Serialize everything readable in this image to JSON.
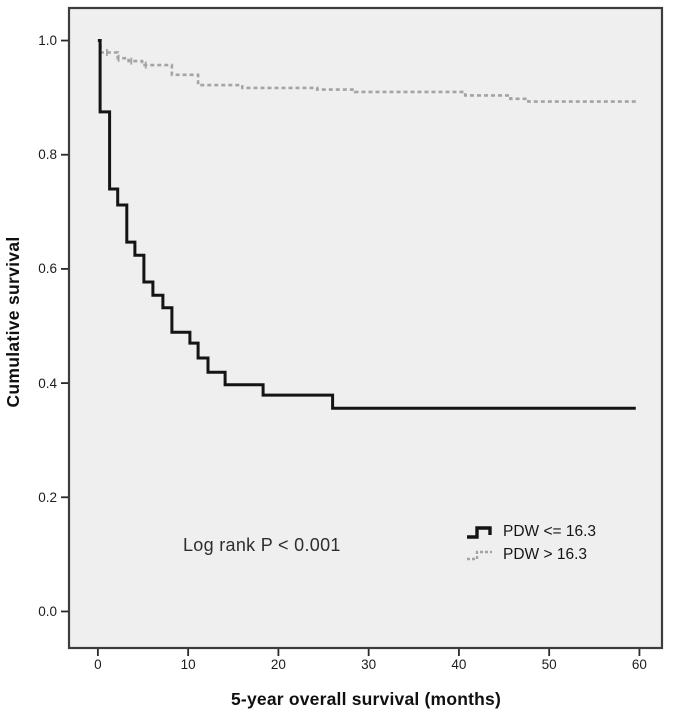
{
  "figure": {
    "background": "#ffffff",
    "plot_background": "#efefef",
    "frame_color": "#3d3d3d",
    "tick_color": "#2a2a2a"
  },
  "chart_data": {
    "type": "line",
    "subtype": "kaplan-meier-step",
    "title": "",
    "xlabel": "5-year overall survival (months)",
    "ylabel": "Cumulative survival",
    "xlim": [
      -3.2,
      62.5
    ],
    "ylim": [
      -0.064,
      1.057
    ],
    "x_tick_values": [
      0,
      10,
      20,
      30,
      40,
      50,
      60
    ],
    "x_tick_labels": [
      "0",
      "10",
      "20",
      "30",
      "40",
      "50",
      "60"
    ],
    "y_tick_values": [
      0.0,
      0.2,
      0.4,
      0.6,
      0.8,
      1.0
    ],
    "y_tick_labels": [
      "0.0",
      "0.2",
      "0.4",
      "0.6",
      "0.8",
      "1.0"
    ],
    "grid": false,
    "legend_position": "lower right",
    "annotation": "Log rank P < 0.001",
    "series": [
      {
        "name": "PDW <= 16.3",
        "line_style": "solid",
        "color": "#141414",
        "line_width": 3,
        "points": [
          [
            0,
            1.0
          ],
          [
            0.25,
            0.875
          ],
          [
            1.3,
            0.74
          ],
          [
            2.2,
            0.712
          ],
          [
            3.2,
            0.647
          ],
          [
            4.1,
            0.624
          ],
          [
            5.1,
            0.577
          ],
          [
            6.1,
            0.554
          ],
          [
            7.2,
            0.532
          ],
          [
            8.2,
            0.489
          ],
          [
            10.2,
            0.47
          ],
          [
            11.1,
            0.444
          ],
          [
            12.2,
            0.419
          ],
          [
            14.1,
            0.397
          ],
          [
            18.3,
            0.379
          ],
          [
            26.0,
            0.356
          ],
          [
            59.6,
            0.356
          ]
        ],
        "censor_marks": []
      },
      {
        "name": "PDW > 16.3",
        "line_style": "dashed",
        "color": "#a4a4a4",
        "line_width": 2.6,
        "points": [
          [
            0,
            1.0
          ],
          [
            0.3,
            0.979
          ],
          [
            2.2,
            0.969
          ],
          [
            3.4,
            0.964
          ],
          [
            4.9,
            0.957
          ],
          [
            8.2,
            0.94
          ],
          [
            11.1,
            0.922
          ],
          [
            16.0,
            0.917
          ],
          [
            24.3,
            0.914
          ],
          [
            28.5,
            0.91
          ],
          [
            40.7,
            0.904
          ],
          [
            45.7,
            0.898
          ],
          [
            47.7,
            0.893
          ],
          [
            59.7,
            0.893
          ]
        ],
        "censor_marks": [
          [
            1.0,
            0.979
          ],
          [
            2.3,
            0.969
          ],
          [
            3.7,
            0.964
          ],
          [
            5.3,
            0.957
          ]
        ]
      }
    ]
  }
}
